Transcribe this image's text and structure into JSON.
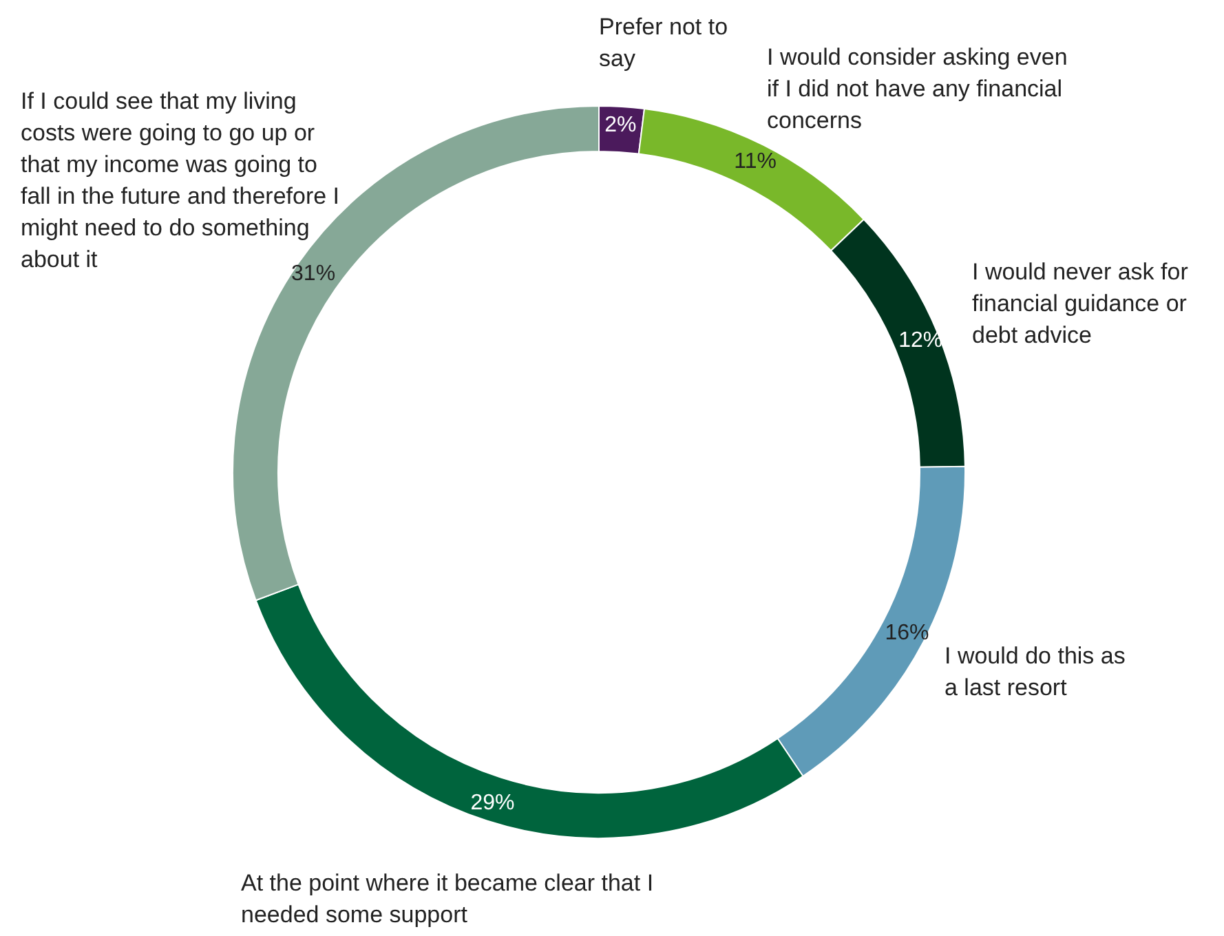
{
  "chart_data": {
    "type": "donut",
    "categories": [
      "Prefer not to say",
      "I would consider asking even if I did not have any financial concerns",
      "I would never ask for financial guidance or debt advice",
      "I would do this as a last resort",
      "At the point where it became clear that I needed some support",
      "If I could see that my living costs were going to go up or that my income was going to fall in the future and therefore I might need to do something about it"
    ],
    "values": [
      2,
      11,
      12,
      16,
      29,
      31
    ],
    "colors": [
      "#4b1a5c",
      "#79b82a",
      "#00341e",
      "#5f9bb8",
      "#00643d",
      "#86a897"
    ],
    "value_labels": [
      "2%",
      "11%",
      "12%",
      "16%",
      "29%",
      "31%"
    ],
    "legend": false
  }
}
